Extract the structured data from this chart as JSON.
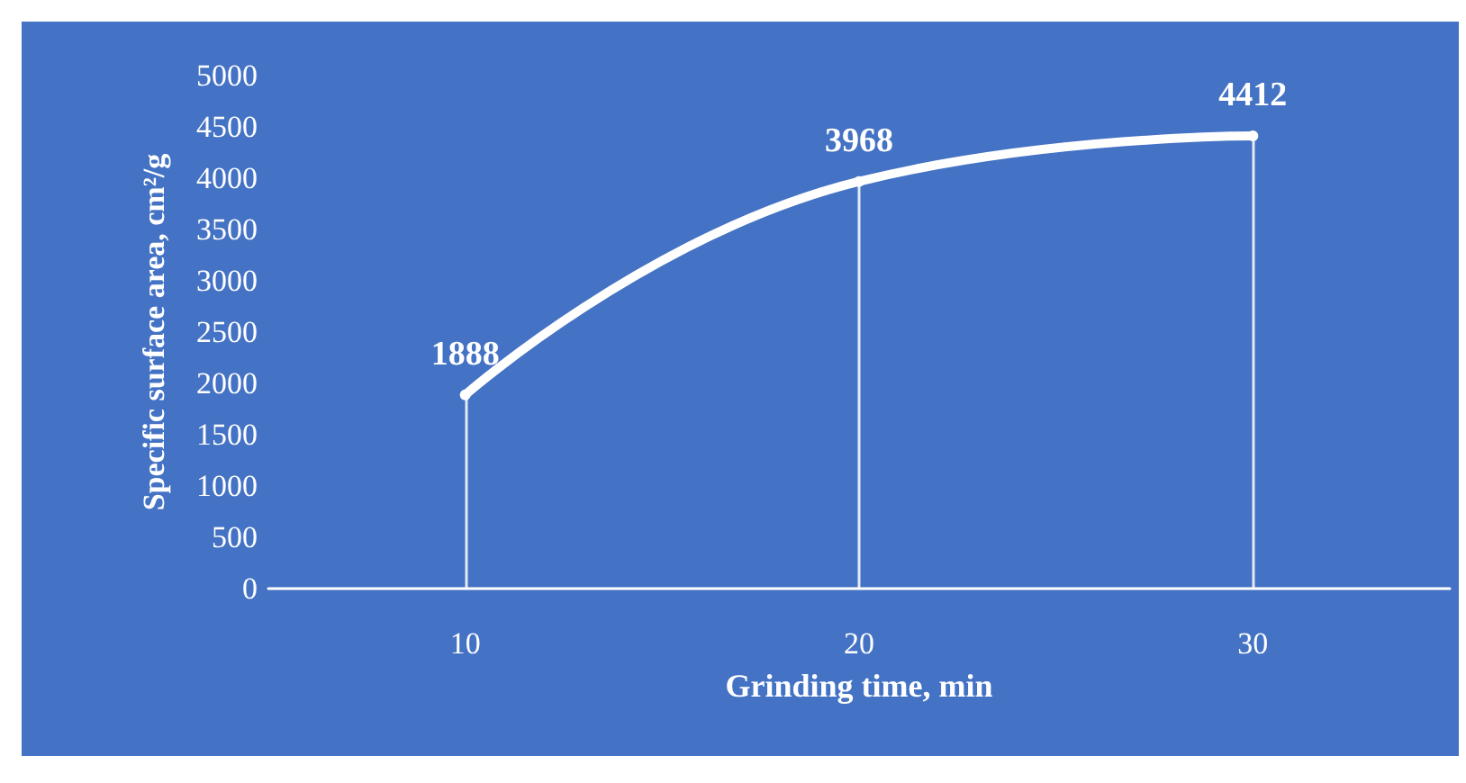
{
  "chart_data": {
    "type": "line",
    "xlabel": "Grinding time, min",
    "ylabel": "Specific surface area, cm²/g",
    "categories": [
      "10",
      "20",
      "30"
    ],
    "series": [
      {
        "color": "#ffffff",
        "values": [
          1888,
          3968,
          4412
        ]
      }
    ],
    "ylim": [
      0,
      5000
    ],
    "yticks": [
      0,
      500,
      1000,
      1500,
      2000,
      2500,
      3000,
      3500,
      4000,
      4500,
      5000
    ],
    "grid": "x",
    "data_labels": true,
    "marker": "circle",
    "line_style": "solid"
  }
}
